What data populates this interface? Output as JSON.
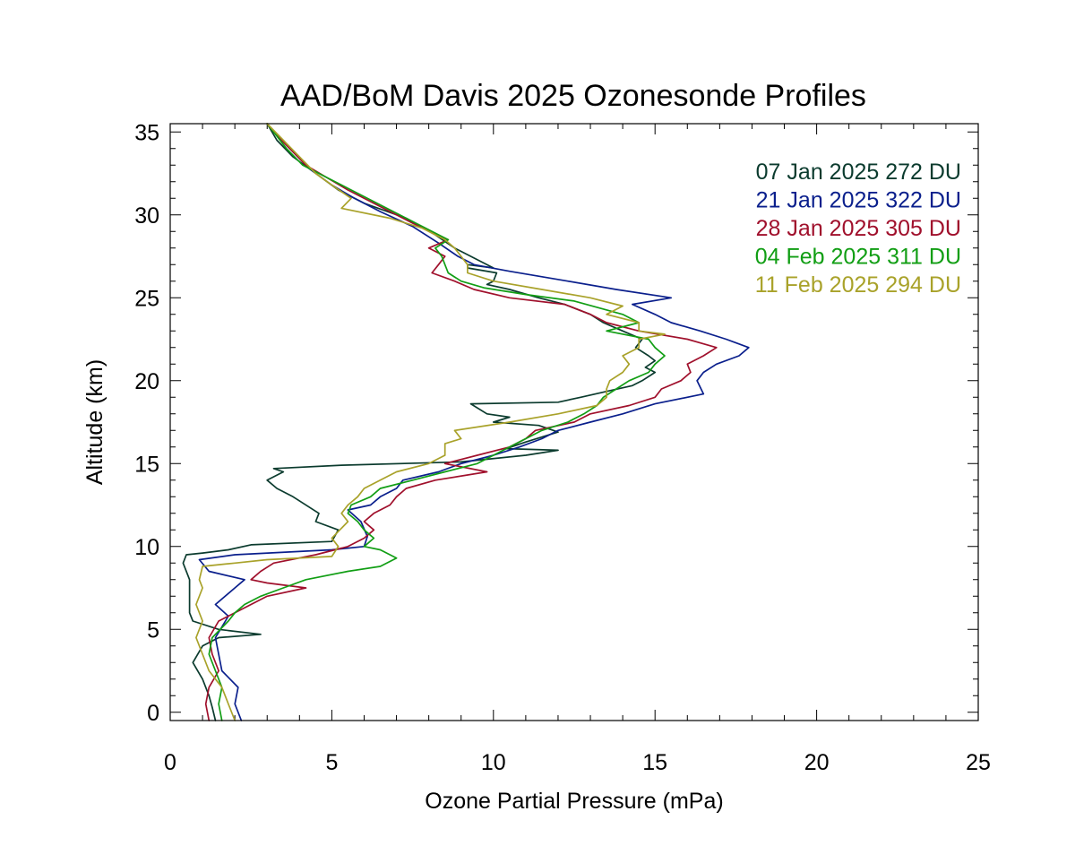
{
  "chart_data": {
    "type": "line",
    "title": "AAD/BoM Davis 2025 Ozonesonde Profiles",
    "xlabel": "Ozone Partial Pressure (mPa)",
    "ylabel": "Altitude (km)",
    "xlim": [
      0,
      25
    ],
    "ylim": [
      -0.5,
      35.5
    ],
    "xticks": [
      0,
      5,
      10,
      15,
      20,
      25
    ],
    "yticks": [
      0,
      5,
      10,
      15,
      20,
      25,
      30,
      35
    ],
    "grid": false,
    "legend_position": "top-right",
    "series": [
      {
        "name": "07 Jan 2025 272 DU",
        "color": "#0b3b2e",
        "points": [
          [
            1.4,
            -0.5
          ],
          [
            1.3,
            0.3
          ],
          [
            1.2,
            1
          ],
          [
            1.0,
            2
          ],
          [
            0.7,
            3
          ],
          [
            1.0,
            4
          ],
          [
            1.5,
            4.5
          ],
          [
            2.8,
            4.7
          ],
          [
            1.5,
            5
          ],
          [
            0.7,
            5.5
          ],
          [
            0.6,
            6
          ],
          [
            0.6,
            7
          ],
          [
            0.6,
            8
          ],
          [
            0.4,
            9
          ],
          [
            0.5,
            9.5
          ],
          [
            1.0,
            9.6
          ],
          [
            1.8,
            9.8
          ],
          [
            2.5,
            10.1
          ],
          [
            5.0,
            10.3
          ],
          [
            5.2,
            11
          ],
          [
            4.5,
            11.5
          ],
          [
            4.6,
            12
          ],
          [
            3.8,
            13
          ],
          [
            3.3,
            13.5
          ],
          [
            3.0,
            14
          ],
          [
            3.5,
            14.5
          ],
          [
            3.2,
            14.7
          ],
          [
            5.3,
            14.9
          ],
          [
            9.0,
            15.1
          ],
          [
            11,
            15.5
          ],
          [
            12.0,
            15.8
          ],
          [
            10.4,
            15.9
          ],
          [
            11,
            16.3
          ],
          [
            12.0,
            16.9
          ],
          [
            11.4,
            17.3
          ],
          [
            10.0,
            17.5
          ],
          [
            10.5,
            17.8
          ],
          [
            9.8,
            18.0
          ],
          [
            9.3,
            18.6
          ],
          [
            12.0,
            18.7
          ],
          [
            12.7,
            19.0
          ],
          [
            13.6,
            19.4
          ],
          [
            14.3,
            19.7
          ],
          [
            14.6,
            20.0
          ],
          [
            15.0,
            20.5
          ],
          [
            14.7,
            20.8
          ],
          [
            15.0,
            21.2
          ],
          [
            14.8,
            21.5
          ],
          [
            14.4,
            22.0
          ],
          [
            14.6,
            22.5
          ],
          [
            14.0,
            23.0
          ],
          [
            13.4,
            23.5
          ],
          [
            13.0,
            24.0
          ],
          [
            12.2,
            24.6
          ],
          [
            11.4,
            25
          ],
          [
            10.5,
            25.5
          ],
          [
            9.8,
            25.8
          ],
          [
            10.0,
            26.0
          ],
          [
            10.1,
            26.5
          ],
          [
            9.2,
            26.8
          ],
          [
            9.2,
            27.0
          ],
          [
            10.0,
            26.8
          ],
          [
            8.8,
            28
          ],
          [
            8.2,
            28.8
          ],
          [
            7.3,
            29.8
          ],
          [
            6.0,
            30.7
          ],
          [
            5.2,
            31.5
          ],
          [
            4.5,
            32.5
          ],
          [
            3.8,
            33.5
          ],
          [
            3.3,
            34.5
          ],
          [
            3.0,
            35.5
          ]
        ]
      },
      {
        "name": "21 Jan 2025 322 DU",
        "color": "#0a1f8c",
        "points": [
          [
            2.2,
            -0.5
          ],
          [
            2.0,
            0.5
          ],
          [
            2.1,
            1.5
          ],
          [
            1.6,
            2.5
          ],
          [
            1.5,
            3.5
          ],
          [
            1.4,
            4.5
          ],
          [
            1.8,
            5.8
          ],
          [
            1.4,
            6.5
          ],
          [
            2.0,
            7.5
          ],
          [
            2.3,
            8.0
          ],
          [
            1.2,
            8.5
          ],
          [
            0.9,
            9.2
          ],
          [
            2.0,
            9.5
          ],
          [
            5.0,
            9.8
          ],
          [
            6.0,
            10.0
          ],
          [
            6.1,
            10.6
          ],
          [
            5.9,
            11.5
          ],
          [
            5.5,
            12.2
          ],
          [
            6.2,
            12.5
          ],
          [
            6.5,
            13.0
          ],
          [
            7.0,
            13.5
          ],
          [
            7.2,
            14.0
          ],
          [
            8.3,
            14.5
          ],
          [
            9.0,
            15.0
          ],
          [
            10.0,
            15.5
          ],
          [
            10.8,
            16.0
          ],
          [
            11.5,
            16.5
          ],
          [
            12.0,
            17.0
          ],
          [
            13.0,
            17.5
          ],
          [
            14.0,
            18.0
          ],
          [
            15.0,
            18.6
          ],
          [
            16.5,
            19.2
          ],
          [
            16.3,
            20.0
          ],
          [
            16.5,
            20.5
          ],
          [
            16.9,
            21.0
          ],
          [
            17.6,
            21.5
          ],
          [
            17.9,
            22.0
          ],
          [
            17.2,
            22.5
          ],
          [
            16.4,
            23.0
          ],
          [
            15.5,
            23.5
          ],
          [
            15.0,
            24.0
          ],
          [
            14.3,
            24.6
          ],
          [
            15.5,
            25
          ],
          [
            13.8,
            25.5
          ],
          [
            12.3,
            26.0
          ],
          [
            10.5,
            26.6
          ],
          [
            9.4,
            27.0
          ],
          [
            8.9,
            27.5
          ],
          [
            8.3,
            28.3
          ],
          [
            7.5,
            29.3
          ],
          [
            6.5,
            30.2
          ],
          [
            5.7,
            31.0
          ],
          [
            5.0,
            31.8
          ],
          [
            4.3,
            32.8
          ],
          [
            3.8,
            33.8
          ],
          [
            3.3,
            34.8
          ],
          [
            3.0,
            35.5
          ]
        ]
      },
      {
        "name": "28 Jan 2025 305 DU",
        "color": "#a0102c",
        "points": [
          [
            1.2,
            -0.5
          ],
          [
            1.1,
            0.5
          ],
          [
            1.2,
            1.5
          ],
          [
            1.5,
            2.5
          ],
          [
            1.3,
            3.5
          ],
          [
            1.2,
            4.5
          ],
          [
            1.5,
            5.5
          ],
          [
            2.0,
            6.0
          ],
          [
            2.5,
            6.5
          ],
          [
            3.0,
            7.0
          ],
          [
            4.2,
            7.5
          ],
          [
            3.0,
            7.8
          ],
          [
            2.5,
            8.0
          ],
          [
            2.8,
            8.5
          ],
          [
            3.2,
            9.0
          ],
          [
            4.5,
            9.5
          ],
          [
            5.5,
            10.0
          ],
          [
            6.0,
            10.5
          ],
          [
            6.3,
            11.0
          ],
          [
            6.0,
            11.5
          ],
          [
            6.3,
            12.0
          ],
          [
            6.8,
            12.5
          ],
          [
            7.0,
            13.0
          ],
          [
            7.3,
            13.5
          ],
          [
            8.2,
            14.0
          ],
          [
            9.8,
            14.5
          ],
          [
            8.5,
            15.0
          ],
          [
            9.5,
            15.5
          ],
          [
            10.5,
            16.0
          ],
          [
            11.0,
            16.5
          ],
          [
            11.3,
            17.0
          ],
          [
            12.5,
            17.5
          ],
          [
            13.0,
            18.0
          ],
          [
            14.2,
            18.5
          ],
          [
            15.0,
            19.0
          ],
          [
            15.2,
            19.5
          ],
          [
            15.8,
            20.0
          ],
          [
            16.1,
            20.5
          ],
          [
            16.0,
            21.0
          ],
          [
            16.5,
            21.5
          ],
          [
            16.9,
            22.0
          ],
          [
            16.0,
            22.5
          ],
          [
            14.5,
            23.0
          ],
          [
            13.5,
            23.5
          ],
          [
            13.0,
            24.0
          ],
          [
            12.2,
            24.6
          ],
          [
            10.5,
            25.0
          ],
          [
            9.4,
            25.5
          ],
          [
            8.8,
            26.0
          ],
          [
            8.1,
            26.5
          ],
          [
            8.3,
            27.0
          ],
          [
            8.5,
            27.5
          ],
          [
            8.0,
            28.0
          ],
          [
            8.6,
            28.5
          ],
          [
            7.5,
            29.5
          ],
          [
            6.5,
            30.5
          ],
          [
            5.5,
            31.5
          ],
          [
            4.8,
            32.3
          ],
          [
            4.2,
            33.0
          ],
          [
            3.7,
            34.0
          ],
          [
            3.2,
            35.0
          ],
          [
            3.0,
            35.5
          ]
        ]
      },
      {
        "name": "04 Feb 2025 311 DU",
        "color": "#119e14",
        "points": [
          [
            1.6,
            -0.5
          ],
          [
            1.5,
            0.5
          ],
          [
            1.6,
            1.5
          ],
          [
            1.4,
            2.5
          ],
          [
            1.2,
            3.5
          ],
          [
            1.3,
            4.5
          ],
          [
            1.8,
            5.5
          ],
          [
            2.0,
            6.0
          ],
          [
            2.3,
            6.5
          ],
          [
            2.8,
            7.0
          ],
          [
            3.5,
            7.5
          ],
          [
            4.2,
            8.0
          ],
          [
            5.5,
            8.5
          ],
          [
            6.5,
            8.8
          ],
          [
            7.0,
            9.3
          ],
          [
            6.5,
            9.8
          ],
          [
            6.0,
            10.0
          ],
          [
            6.3,
            10.5
          ],
          [
            6.0,
            11.0
          ],
          [
            5.8,
            11.5
          ],
          [
            5.5,
            12.0
          ],
          [
            5.6,
            12.5
          ],
          [
            6.2,
            13.0
          ],
          [
            6.5,
            13.5
          ],
          [
            7.5,
            14.0
          ],
          [
            8.5,
            14.5
          ],
          [
            9.5,
            15.0
          ],
          [
            10.0,
            15.5
          ],
          [
            10.5,
            16.0
          ],
          [
            11.0,
            16.5
          ],
          [
            11.5,
            17.0
          ],
          [
            12.3,
            17.5
          ],
          [
            12.8,
            18.0
          ],
          [
            13.2,
            18.5
          ],
          [
            13.4,
            19.0
          ],
          [
            13.8,
            19.5
          ],
          [
            14.2,
            20.0
          ],
          [
            14.8,
            20.5
          ],
          [
            15.0,
            21.0
          ],
          [
            15.3,
            21.5
          ],
          [
            15.0,
            22.0
          ],
          [
            14.8,
            22.5
          ],
          [
            13.5,
            23.0
          ],
          [
            14.5,
            23.5
          ],
          [
            14.0,
            24.0
          ],
          [
            12.5,
            24.8
          ],
          [
            11.0,
            25.2
          ],
          [
            9.7,
            25.6
          ],
          [
            9.0,
            26.0
          ],
          [
            8.6,
            26.5
          ],
          [
            8.5,
            27.0
          ],
          [
            8.4,
            27.5
          ],
          [
            8.2,
            28.0
          ],
          [
            8.6,
            28.5
          ],
          [
            7.6,
            29.5
          ],
          [
            6.6,
            30.5
          ],
          [
            5.6,
            31.5
          ],
          [
            4.8,
            32.3
          ],
          [
            4.1,
            33.0
          ],
          [
            3.6,
            34.0
          ],
          [
            3.2,
            35.0
          ],
          [
            3.0,
            35.5
          ]
        ]
      },
      {
        "name": "11 Feb 2025 294 DU",
        "color": "#a9a22a",
        "points": [
          [
            2.0,
            -0.5
          ],
          [
            1.8,
            0.5
          ],
          [
            1.6,
            1.5
          ],
          [
            1.2,
            2.5
          ],
          [
            1.0,
            3.5
          ],
          [
            0.8,
            4.5
          ],
          [
            1.0,
            5.5
          ],
          [
            0.8,
            6.5
          ],
          [
            1.0,
            7.5
          ],
          [
            0.9,
            8.0
          ],
          [
            1.0,
            8.8
          ],
          [
            2.0,
            9.0
          ],
          [
            3.0,
            9.2
          ],
          [
            5.0,
            9.4
          ],
          [
            5.2,
            10.0
          ],
          [
            5.0,
            10.5
          ],
          [
            5.5,
            11.5
          ],
          [
            5.3,
            12.0
          ],
          [
            5.5,
            12.5
          ],
          [
            5.8,
            13.0
          ],
          [
            6.0,
            13.5
          ],
          [
            6.5,
            14.0
          ],
          [
            7.0,
            14.5
          ],
          [
            8.0,
            15.0
          ],
          [
            8.5,
            15.5
          ],
          [
            8.5,
            16.2
          ],
          [
            9.0,
            16.5
          ],
          [
            8.8,
            17.0
          ],
          [
            10.5,
            17.5
          ],
          [
            12.0,
            18.0
          ],
          [
            13.2,
            18.5
          ],
          [
            13.5,
            19.0
          ],
          [
            13.5,
            19.5
          ],
          [
            13.6,
            20.0
          ],
          [
            14.0,
            20.5
          ],
          [
            14.2,
            21.0
          ],
          [
            14.0,
            21.5
          ],
          [
            14.5,
            22.0
          ],
          [
            14.5,
            22.5
          ],
          [
            15.3,
            22.8
          ],
          [
            14.5,
            23.0
          ],
          [
            14.5,
            23.5
          ],
          [
            13.5,
            24.0
          ],
          [
            14.0,
            24.5
          ],
          [
            13.0,
            25.0
          ],
          [
            11.5,
            25.5
          ],
          [
            10.0,
            26.0
          ],
          [
            9.2,
            26.5
          ],
          [
            9.2,
            27.0
          ],
          [
            9.0,
            27.5
          ],
          [
            8.8,
            28.0
          ],
          [
            8.5,
            28.5
          ],
          [
            7.8,
            29.2
          ],
          [
            6.8,
            29.8
          ],
          [
            5.3,
            30.4
          ],
          [
            5.6,
            31.0
          ],
          [
            5.0,
            31.8
          ],
          [
            4.5,
            32.5
          ],
          [
            4.0,
            33.5
          ],
          [
            3.5,
            34.5
          ],
          [
            3.0,
            35.5
          ]
        ]
      }
    ]
  }
}
